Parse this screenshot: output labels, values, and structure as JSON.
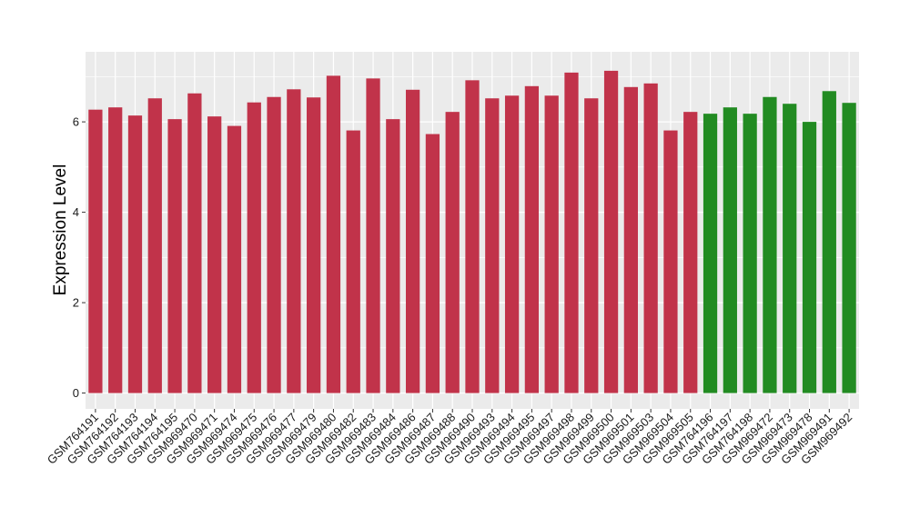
{
  "chart_data": {
    "type": "bar",
    "ylabel": "Expression Level",
    "xlabel": "",
    "ylim": [
      -0.35,
      7.55
    ],
    "yticks": [
      0,
      2,
      4,
      6
    ],
    "colors": {
      "group1": "#c1334a",
      "group2": "#228b22",
      "panel": "#ebebeb",
      "grid": "#ffffff"
    },
    "categories": [
      "GSM764191",
      "GSM764192",
      "GSM764193",
      "GSM764194",
      "GSM764195",
      "GSM969470",
      "GSM969471",
      "GSM969474",
      "GSM969475",
      "GSM969476",
      "GSM969477",
      "GSM969479",
      "GSM969480",
      "GSM969482",
      "GSM969483",
      "GSM969484",
      "GSM969486",
      "GSM969487",
      "GSM969488",
      "GSM969490",
      "GSM969493",
      "GSM969494",
      "GSM969495",
      "GSM969497",
      "GSM969498",
      "GSM969499",
      "GSM969500",
      "GSM969501",
      "GSM969503",
      "GSM969504",
      "GSM969505",
      "GSM764196",
      "GSM764197",
      "GSM764198",
      "GSM969472",
      "GSM969473",
      "GSM969478",
      "GSM969491",
      "GSM969492"
    ],
    "values": [
      6.27,
      6.32,
      6.14,
      6.52,
      6.06,
      6.63,
      6.12,
      5.91,
      6.43,
      6.55,
      6.72,
      6.54,
      7.02,
      5.81,
      6.96,
      6.06,
      6.71,
      5.73,
      6.22,
      6.92,
      6.52,
      6.58,
      6.79,
      6.58,
      7.09,
      6.52,
      7.13,
      6.77,
      6.85,
      5.81,
      6.22,
      6.18,
      6.32,
      6.18,
      6.55,
      6.4,
      6.0,
      6.68,
      6.42
    ],
    "groups": [
      1,
      1,
      1,
      1,
      1,
      1,
      1,
      1,
      1,
      1,
      1,
      1,
      1,
      1,
      1,
      1,
      1,
      1,
      1,
      1,
      1,
      1,
      1,
      1,
      1,
      1,
      1,
      1,
      1,
      1,
      1,
      2,
      2,
      2,
      2,
      2,
      2,
      2,
      2
    ]
  }
}
